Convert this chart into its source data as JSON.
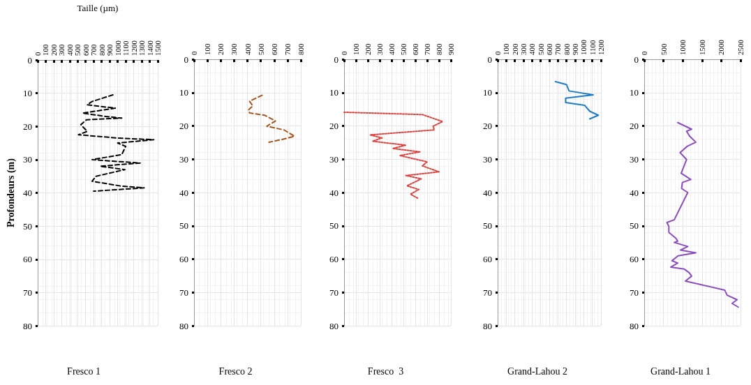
{
  "chart_data": [
    {
      "type": "line",
      "title": "Fresco 1",
      "xlabel": "Taille (µm)",
      "ylabel": "Profondeurs (m)",
      "line_style": "dashed",
      "grid": true,
      "marker": "none",
      "xlim": [
        0,
        1500
      ],
      "xticks": [
        0,
        100,
        200,
        300,
        400,
        500,
        600,
        700,
        800,
        900,
        1000,
        1100,
        1200,
        1300,
        1400,
        1500
      ],
      "ylim": [
        80,
        0
      ],
      "yticks": [
        0,
        10,
        20,
        30,
        40,
        50,
        60,
        70,
        80
      ],
      "x": [
        940,
        680,
        620,
        970,
        560,
        850,
        1050,
        610,
        540,
        620,
        510,
        1000,
        1450,
        1000,
        1100,
        1050,
        680,
        960,
        1280,
        780,
        1090,
        730,
        680,
        1050,
        1330,
        700
      ],
      "series": [
        {
          "color": "#000000",
          "values": [
            10.5,
            12.5,
            13.5,
            14.5,
            16,
            17,
            17.5,
            18,
            19.5,
            21.5,
            22.5,
            23.5,
            24,
            25,
            26,
            28.5,
            30,
            30.5,
            31,
            32,
            33,
            35,
            36.5,
            38,
            38.5,
            39.5
          ]
        }
      ]
    },
    {
      "type": "line",
      "title": "Fresco 2",
      "line_style": "dashed",
      "grid": true,
      "marker": "none",
      "xlim": [
        0,
        800
      ],
      "xticks": [
        0,
        100,
        200,
        300,
        400,
        500,
        600,
        700,
        800
      ],
      "ylim": [
        80,
        0
      ],
      "yticks": [
        0,
        10,
        20,
        30,
        40,
        50,
        60,
        70,
        80
      ],
      "x": [
        510,
        416,
        440,
        408,
        416,
        529,
        610,
        545,
        674,
        752,
        658,
        561
      ],
      "series": [
        {
          "color": "#a5531d",
          "values": [
            10.8,
            12.6,
            14,
            15.2,
            16.1,
            16.8,
            18.5,
            20.1,
            21.2,
            23.1,
            24.1,
            24.9
          ]
        }
      ]
    },
    {
      "type": "line",
      "title": "Fresco  3",
      "line_style": "dotted",
      "grid": true,
      "marker": "none",
      "xlim": [
        0,
        900
      ],
      "xticks": [
        0,
        100,
        200,
        300,
        400,
        500,
        600,
        700,
        800,
        900
      ],
      "ylim": [
        80,
        0
      ],
      "yticks": [
        0,
        10,
        20,
        30,
        40,
        50,
        60,
        70,
        80
      ],
      "x": [
        0,
        660,
        830,
        750,
        760,
        220,
        320,
        240,
        520,
        410,
        640,
        470,
        700,
        660,
        800,
        520,
        650,
        530,
        630,
        560,
        620
      ],
      "series": [
        {
          "color": "#d9423f",
          "values": [
            15.9,
            16.6,
            18.7,
            20.1,
            21.2,
            22.7,
            23.6,
            24.6,
            25.8,
            26.8,
            27.8,
            28.9,
            30.8,
            32,
            33.8,
            34.9,
            35.9,
            38,
            39.1,
            40.5,
            41.7
          ]
        }
      ]
    },
    {
      "type": "line",
      "title": "Grand-Lahou 2",
      "line_style": "solid",
      "grid": true,
      "marker": "none",
      "xlim": [
        0,
        1200
      ],
      "xticks": [
        0,
        100,
        200,
        300,
        400,
        500,
        600,
        700,
        800,
        900,
        1000,
        1100,
        1200
      ],
      "ylim": [
        80,
        0
      ],
      "yticks": [
        0,
        10,
        20,
        30,
        40,
        50,
        60,
        70,
        80
      ],
      "x": [
        670,
        800,
        830,
        1110,
        790,
        790,
        1010,
        1070,
        1170,
        1070
      ],
      "series": [
        {
          "color": "#1f7cc4",
          "values": [
            6.7,
            7.6,
            9.5,
            10.7,
            11.7,
            13,
            13.8,
            15.6,
            16.8,
            17.9
          ]
        }
      ]
    },
    {
      "type": "line",
      "title": "Grand-Lahou 1",
      "line_style": "solid",
      "grid": true,
      "marker": "none",
      "xlim": [
        0,
        2500
      ],
      "xticks": [
        0,
        500,
        1000,
        1500,
        2000,
        2500
      ],
      "ylim": [
        80,
        0
      ],
      "yticks": [
        0,
        10,
        20,
        30,
        40,
        50,
        60,
        70,
        80
      ],
      "x": [
        870,
        1230,
        1100,
        1180,
        1340,
        1120,
        930,
        1100,
        960,
        1210,
        990,
        970,
        1130,
        780,
        590,
        640,
        640,
        820,
        870,
        780,
        1130,
        940,
        1340,
        880,
        720,
        870,
        690,
        1040,
        1170,
        1230,
        1070,
        2090,
        2150,
        2410,
        2280,
        2440
      ],
      "series": [
        {
          "color": "#8a4dbd",
          "values": [
            19,
            21,
            21.6,
            23.1,
            24.9,
            26.1,
            28,
            30.1,
            34.2,
            36.1,
            37,
            38.8,
            40,
            48.2,
            49,
            50.2,
            52,
            53.7,
            54.6,
            55,
            56.2,
            57.3,
            58.1,
            59,
            60.5,
            61.2,
            62.4,
            63,
            64.1,
            65.1,
            66.6,
            69.3,
            70.8,
            72.2,
            73.3,
            74.4
          ]
        }
      ]
    }
  ]
}
